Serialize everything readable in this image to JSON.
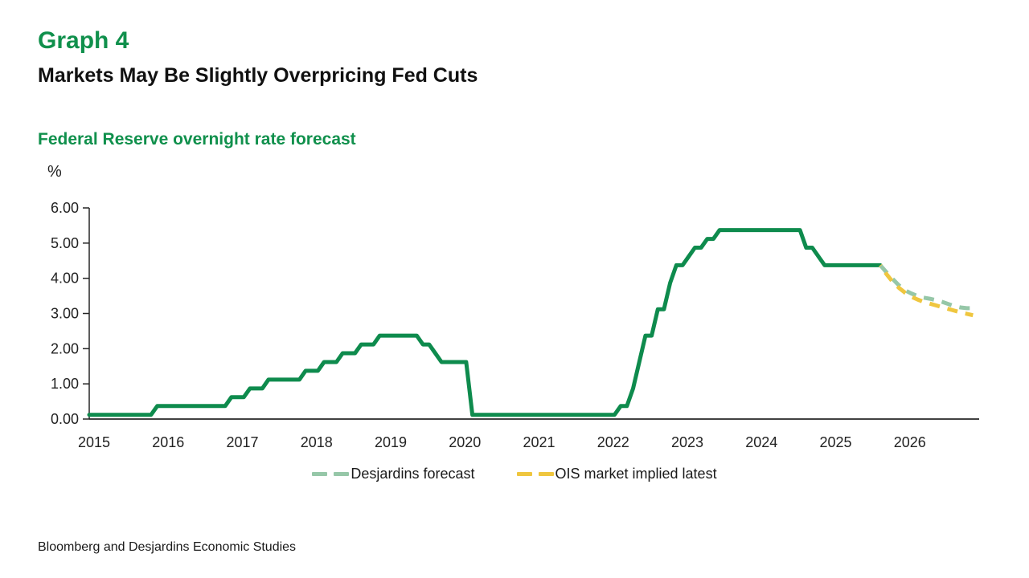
{
  "header": {
    "graph_label": "Graph 4",
    "title": "Markets May Be Slightly Overpricing Fed Cuts"
  },
  "chart": {
    "title": "Federal Reserve overnight rate forecast",
    "y_unit": "%"
  },
  "legend": {
    "items": [
      {
        "label": "Desjardins forecast",
        "series": "desjardins_forecast"
      },
      {
        "label": "OIS market implied latest",
        "series": "ois_market_implied"
      }
    ]
  },
  "footer": {
    "source": "Bloomberg and Desjardins Economic Studies"
  },
  "colors": {
    "heading_green": "#10904C",
    "line_green": "#0E8B4D",
    "forecast_teal": "#96C7A8",
    "forecast_yellow": "#EFC63F",
    "axis": "#262626",
    "text": "#222222"
  },
  "chart_data": {
    "type": "line",
    "title": "Federal Reserve overnight rate forecast",
    "xlabel": "",
    "ylabel": "%",
    "ylim": [
      0,
      6
    ],
    "y_tick_labels": [
      "0.00",
      "1.00",
      "2.00",
      "3.00",
      "4.00",
      "5.00",
      "6.00"
    ],
    "x_tick_labels": [
      "2015",
      "2016",
      "2017",
      "2018",
      "2019",
      "2020",
      "2021",
      "2022",
      "2023",
      "2024",
      "2025",
      "2026"
    ],
    "x_is_monthly": true,
    "x_total_months": 144,
    "grid": false,
    "legend_position": "bottom",
    "series": [
      {
        "name": "historical",
        "key": "historical",
        "color": "#0E8B4D",
        "style": "solid",
        "start_month": 0,
        "values": [
          0.12,
          0.12,
          0.12,
          0.12,
          0.12,
          0.12,
          0.12,
          0.12,
          0.12,
          0.12,
          0.12,
          0.37,
          0.37,
          0.37,
          0.37,
          0.37,
          0.37,
          0.37,
          0.37,
          0.37,
          0.37,
          0.37,
          0.37,
          0.62,
          0.62,
          0.62,
          0.87,
          0.87,
          0.87,
          1.12,
          1.12,
          1.12,
          1.12,
          1.12,
          1.12,
          1.37,
          1.37,
          1.37,
          1.62,
          1.62,
          1.62,
          1.87,
          1.87,
          1.87,
          2.12,
          2.12,
          2.12,
          2.37,
          2.37,
          2.37,
          2.37,
          2.37,
          2.37,
          2.37,
          2.12,
          2.12,
          1.87,
          1.62,
          1.62,
          1.62,
          1.62,
          1.62,
          0.12,
          0.12,
          0.12,
          0.12,
          0.12,
          0.12,
          0.12,
          0.12,
          0.12,
          0.12,
          0.12,
          0.12,
          0.12,
          0.12,
          0.12,
          0.12,
          0.12,
          0.12,
          0.12,
          0.12,
          0.12,
          0.12,
          0.12,
          0.12,
          0.37,
          0.37,
          0.87,
          1.62,
          2.37,
          2.37,
          3.12,
          3.12,
          3.87,
          4.37,
          4.37,
          4.62,
          4.87,
          4.87,
          5.12,
          5.12,
          5.37,
          5.37,
          5.37,
          5.37,
          5.37,
          5.37,
          5.37,
          5.37,
          5.37,
          5.37,
          5.37,
          5.37,
          5.37,
          5.37,
          4.87,
          4.87,
          4.62,
          4.37,
          4.37,
          4.37,
          4.37,
          4.37,
          4.37,
          4.37,
          4.37,
          4.37,
          4.37
        ]
      },
      {
        "name": "Desjardins forecast",
        "key": "desjardins_forecast",
        "color": "#96C7A8",
        "style": "dashed",
        "start_month": 128,
        "values": [
          4.37,
          4.17,
          3.98,
          3.8,
          3.66,
          3.57,
          3.5,
          3.45,
          3.42,
          3.38,
          3.33,
          3.27,
          3.21,
          3.17,
          3.15,
          3.15
        ]
      },
      {
        "name": "OIS market implied latest",
        "key": "ois_market_implied",
        "color": "#EFC63F",
        "style": "dashed",
        "start_month": 128,
        "values": [
          4.37,
          4.12,
          3.9,
          3.73,
          3.59,
          3.48,
          3.4,
          3.33,
          3.28,
          3.23,
          3.18,
          3.13,
          3.08,
          3.03,
          2.99,
          2.95
        ]
      }
    ]
  }
}
